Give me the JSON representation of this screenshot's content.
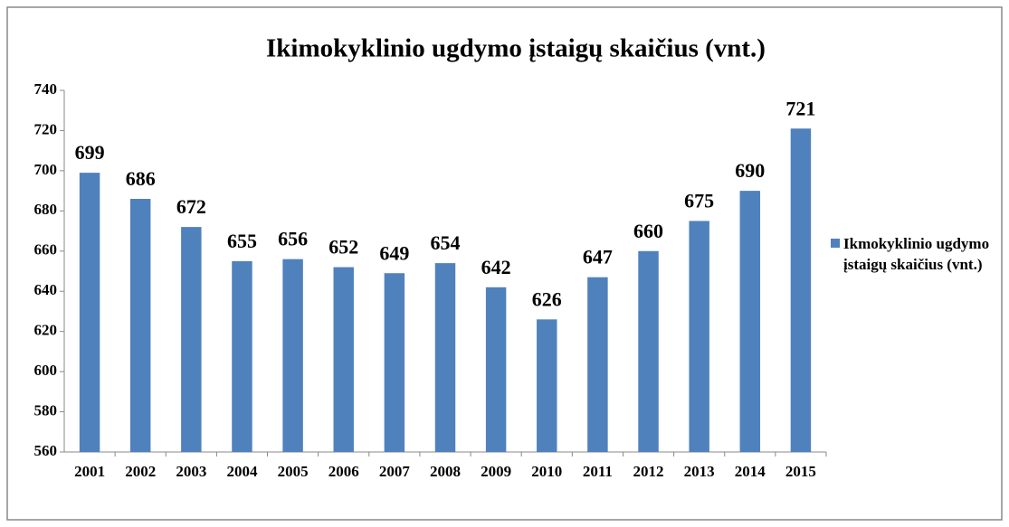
{
  "chart_data": {
    "type": "bar",
    "title": "Ikimokyklinio ugdymo įstaigų skaičius (vnt.)",
    "categories": [
      "2001",
      "2002",
      "2003",
      "2004",
      "2005",
      "2006",
      "2007",
      "2008",
      "2009",
      "2010",
      "2011",
      "2012",
      "2013",
      "2014",
      "2015"
    ],
    "series": [
      {
        "name": "Ikmokyklinio ugdymo įstaigų skaičius (vnt.)",
        "color": "#4f81bd",
        "values": [
          699,
          686,
          672,
          655,
          656,
          652,
          649,
          654,
          642,
          626,
          647,
          660,
          675,
          690,
          721
        ]
      }
    ],
    "ylim": [
      560,
      740
    ],
    "yticks": [
      560,
      580,
      600,
      620,
      640,
      660,
      680,
      700,
      720,
      740
    ],
    "grid": false,
    "legend": "right"
  }
}
